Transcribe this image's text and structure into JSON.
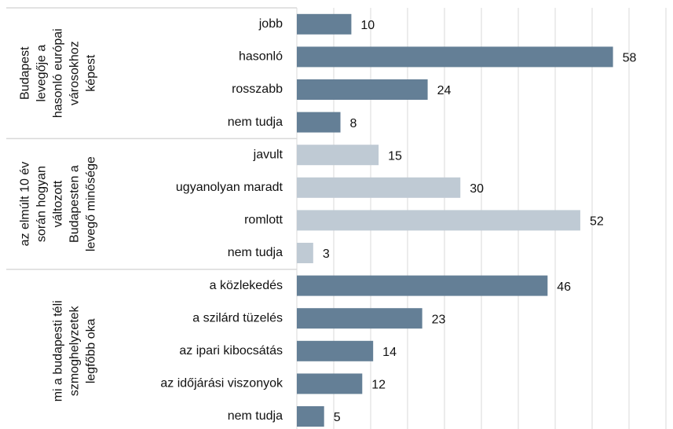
{
  "chart_data": {
    "type": "grouped-hbar",
    "xlim": [
      0,
      68
    ],
    "groups": [
      {
        "label": [
          "Budapest",
          "levegője a",
          "hasonló európai",
          "városokhoz",
          "képest"
        ],
        "color": "#647f96",
        "categories": [
          "jobb",
          "hasonló",
          "rosszabb",
          "nem tudja"
        ],
        "values": [
          10,
          58,
          24,
          8
        ]
      },
      {
        "label": [
          "az elmúlt 10 év",
          "során hogyan",
          "változott",
          "Budapesten a",
          "levegő minősége"
        ],
        "color": "#bfcad4",
        "categories": [
          "javult",
          "ugyanolyan maradt",
          "romlott",
          "nem tudja"
        ],
        "values": [
          15,
          30,
          52,
          3
        ]
      },
      {
        "label": [
          "mi a budapesti téli",
          "szmoghelyzetek",
          "legfőbb oka"
        ],
        "color": "#647f96",
        "categories": [
          "a közlekedés",
          "a szilárd tüzelés",
          "az ipari kibocsátás",
          "az időjárási viszonyok",
          "nem tudja"
        ],
        "values": [
          46,
          23,
          14,
          12,
          5
        ]
      }
    ]
  }
}
